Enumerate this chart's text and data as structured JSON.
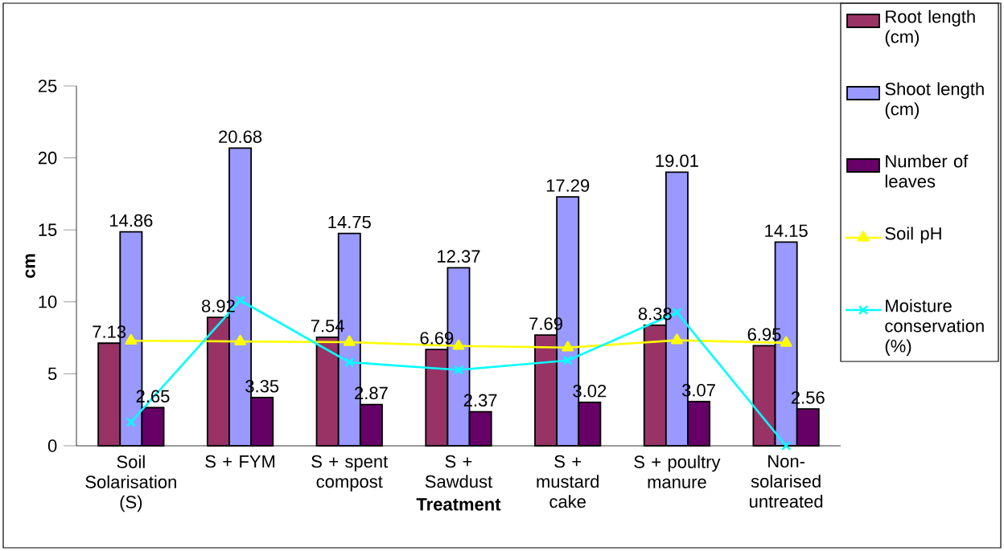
{
  "chart_data": {
    "type": "bar",
    "xlabel": "Treatment",
    "ylabel": "cm",
    "categories": [
      "Soil Solarisation (S)",
      "S + FYM",
      "S + spent compost",
      "S + Sawdust",
      "S + mustard cake",
      "S + poultry manure",
      "Non-solarised untreated"
    ],
    "series": [
      {
        "name": "Root length (cm)",
        "color": "#993366",
        "values": [
          7.13,
          8.92,
          7.54,
          6.69,
          7.69,
          8.38,
          6.95
        ],
        "value_labels": [
          "7.13",
          "8.92",
          "7.54",
          "6.69",
          "7.69",
          "8.38",
          "6.95"
        ]
      },
      {
        "name": "Shoot length (cm)",
        "color": "#9999ff",
        "values": [
          14.86,
          20.68,
          14.75,
          12.37,
          17.29,
          19.01,
          14.15
        ],
        "value_labels": [
          "14.86",
          "20.68",
          "14.75",
          "12.37",
          "17.29",
          "19.01",
          "14.15"
        ]
      },
      {
        "name": "Number of leaves",
        "color": "#660066",
        "values": [
          2.65,
          3.35,
          2.87,
          2.37,
          3.02,
          3.07,
          2.56
        ],
        "value_labels": [
          "2.65",
          "3.35",
          "2.87",
          "2.37",
          "3.02",
          "3.07",
          "2.56"
        ]
      },
      {
        "name": "Soil pH",
        "type": "line",
        "color": "#ffff00",
        "marker": "triangle",
        "values": [
          7.3,
          7.25,
          7.2,
          6.93,
          6.82,
          7.33,
          7.15
        ]
      },
      {
        "name": "Moisture conservation (%)",
        "type": "line",
        "color": "#00ffff",
        "marker": "cross",
        "values": [
          1.65,
          10.1,
          5.8,
          5.27,
          5.93,
          9.26,
          0
        ]
      }
    ],
    "ylim": [
      0,
      25
    ],
    "yticks": [
      0,
      5,
      10,
      15,
      20,
      25
    ],
    "grid": false,
    "legend": "top right"
  }
}
